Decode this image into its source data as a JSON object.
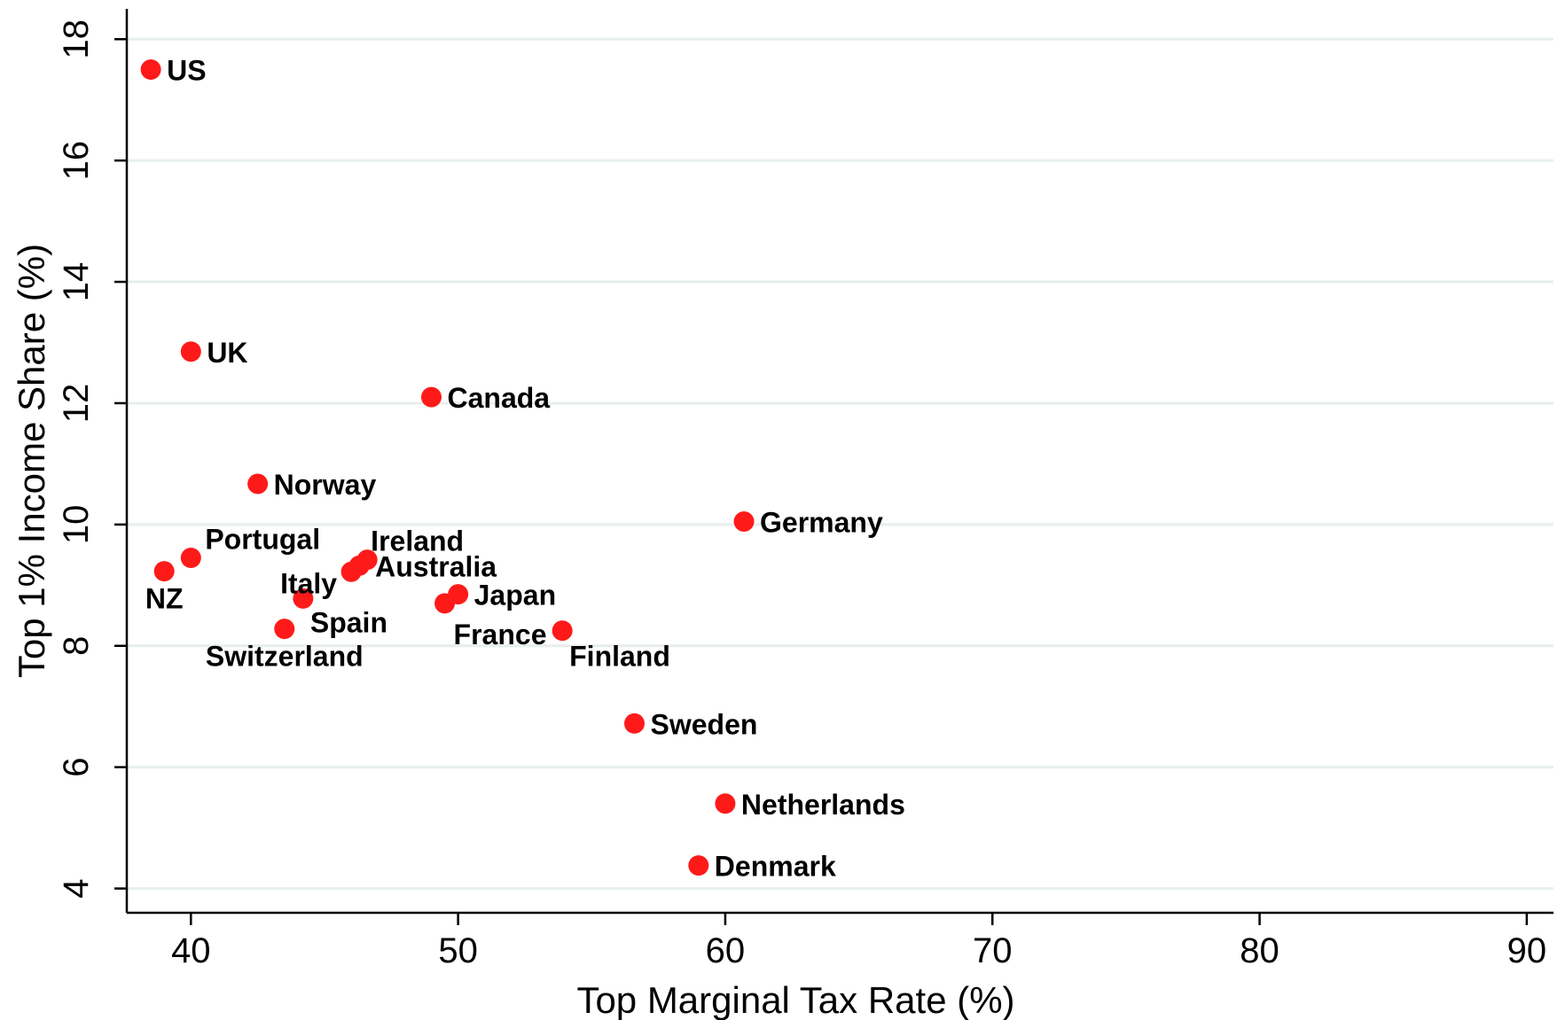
{
  "chart_data": {
    "type": "scatter",
    "xlabel": "Top Marginal Tax Rate (%)",
    "ylabel": "Top 1% Income Share (%)",
    "xlim": [
      37.6,
      91
    ],
    "ylim": [
      3.6,
      18.5
    ],
    "xticks": [
      40,
      50,
      60,
      70,
      80,
      90
    ],
    "yticks": [
      4,
      6,
      8,
      10,
      12,
      14,
      16,
      18
    ],
    "grid": "horizontal",
    "marker_color": "#ff1a1a",
    "points": [
      {
        "label": "US",
        "x": 38.5,
        "y": 17.5,
        "label_pos": "right"
      },
      {
        "label": "UK",
        "x": 40.0,
        "y": 12.85,
        "label_pos": "right"
      },
      {
        "label": "Canada",
        "x": 49.0,
        "y": 12.1,
        "label_pos": "right"
      },
      {
        "label": "Norway",
        "x": 42.5,
        "y": 10.67,
        "label_pos": "right"
      },
      {
        "label": "Germany",
        "x": 60.7,
        "y": 10.05,
        "label_pos": "right"
      },
      {
        "label": "Portugal",
        "x": 40.0,
        "y": 9.45,
        "label_pos": "above-right"
      },
      {
        "label": "NZ",
        "x": 39.0,
        "y": 9.23,
        "label_pos": "below"
      },
      {
        "label": "Ireland",
        "x": 46.6,
        "y": 9.42,
        "label_pos": "above-right"
      },
      {
        "label": "Australia",
        "x": 46.3,
        "y": 9.32,
        "label_pos": "right"
      },
      {
        "label": "Italy",
        "x": 46.0,
        "y": 9.22,
        "label_pos": "left"
      },
      {
        "label": "Japan",
        "x": 50.0,
        "y": 8.85,
        "label_pos": "right"
      },
      {
        "label": "France",
        "x": 49.5,
        "y": 8.7,
        "label_pos": "below-right"
      },
      {
        "label": "Spain",
        "x": 44.2,
        "y": 8.78,
        "label_pos": "below-right"
      },
      {
        "label": "Switzerland",
        "x": 43.5,
        "y": 8.28,
        "label_pos": "below"
      },
      {
        "label": "Finland",
        "x": 53.9,
        "y": 8.25,
        "label_pos": "below-right"
      },
      {
        "label": "Sweden",
        "x": 56.6,
        "y": 6.72,
        "label_pos": "right"
      },
      {
        "label": "Netherlands",
        "x": 60.0,
        "y": 5.4,
        "label_pos": "right"
      },
      {
        "label": "Denmark",
        "x": 59.0,
        "y": 4.38,
        "label_pos": "right"
      }
    ]
  }
}
